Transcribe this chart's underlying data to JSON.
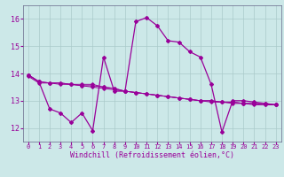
{
  "xlabel": "Windchill (Refroidissement éolien,°C)",
  "background_color": "#cce8e8",
  "grid_color": "#aacaca",
  "line_color": "#990099",
  "ylim": [
    11.5,
    16.5
  ],
  "xlim": [
    -0.5,
    23.5
  ],
  "yticks": [
    12,
    13,
    14,
    15,
    16
  ],
  "xticks": [
    0,
    1,
    2,
    3,
    4,
    5,
    6,
    7,
    8,
    9,
    10,
    11,
    12,
    13,
    14,
    15,
    16,
    17,
    18,
    19,
    20,
    21,
    22,
    23
  ],
  "series1_x": [
    0,
    1,
    2,
    3,
    4,
    5,
    6,
    7,
    8,
    9,
    10,
    11,
    12,
    13,
    14,
    15,
    16,
    17,
    18,
    19,
    20,
    21,
    22,
    23
  ],
  "series1_y": [
    13.95,
    13.7,
    13.65,
    13.65,
    13.6,
    13.6,
    13.6,
    13.5,
    13.45,
    13.35,
    13.3,
    13.25,
    13.2,
    13.15,
    13.1,
    13.05,
    13.0,
    13.0,
    12.95,
    12.95,
    12.9,
    12.9,
    12.9,
    12.85
  ],
  "series2_x": [
    0,
    1,
    2,
    3,
    4,
    5,
    6,
    7,
    8,
    9,
    10,
    11,
    12,
    13,
    14,
    15,
    16,
    17,
    18,
    19,
    20,
    21,
    22,
    23
  ],
  "series2_y": [
    13.95,
    13.7,
    13.65,
    13.65,
    13.6,
    13.55,
    13.55,
    13.5,
    13.45,
    13.35,
    13.3,
    13.25,
    13.2,
    13.15,
    13.1,
    13.05,
    13.0,
    12.95,
    12.95,
    12.9,
    12.9,
    12.85,
    12.85,
    12.85
  ],
  "series3_x": [
    0,
    1,
    2,
    3,
    4,
    5,
    6,
    7,
    8,
    9,
    10,
    11,
    12,
    13,
    14,
    15,
    16,
    17,
    18,
    19,
    20,
    21,
    22,
    23
  ],
  "series3_y": [
    13.9,
    13.65,
    13.65,
    13.6,
    13.6,
    13.55,
    13.5,
    13.45,
    13.4,
    13.35,
    13.3,
    13.25,
    13.2,
    13.15,
    13.1,
    13.05,
    13.0,
    13.0,
    12.95,
    12.95,
    12.9,
    12.9,
    12.85,
    12.85
  ],
  "series4_x": [
    0,
    1,
    2,
    3,
    4,
    5,
    6,
    7,
    8,
    9,
    10,
    11,
    12,
    13,
    14,
    15,
    16,
    17,
    18,
    19,
    20,
    21,
    22,
    23
  ],
  "series4_y": [
    13.95,
    13.7,
    12.7,
    12.55,
    12.2,
    12.55,
    11.9,
    14.6,
    13.35,
    13.35,
    15.9,
    16.05,
    15.75,
    15.2,
    15.15,
    14.8,
    14.6,
    13.6,
    11.85,
    13.0,
    13.0,
    12.95,
    12.9,
    12.85
  ],
  "fontsize_xlabel": 6,
  "fontsize_ytick": 6,
  "fontsize_xtick": 5
}
